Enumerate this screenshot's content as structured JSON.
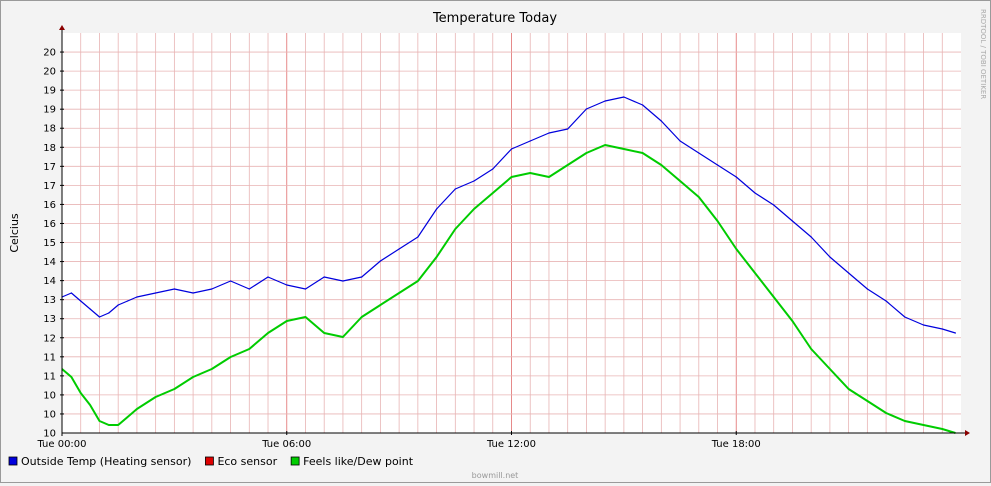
{
  "chart_data": {
    "type": "line",
    "title": "Temperature Today",
    "ylabel": "Celcius",
    "xlabel": "",
    "xlim": [
      0,
      24
    ],
    "ylim": [
      10,
      20
    ],
    "x_ticks": [
      {
        "value": 0,
        "label": "Tue 00:00"
      },
      {
        "value": 6,
        "label": "Tue 06:00"
      },
      {
        "value": 12,
        "label": "Tue 12:00"
      },
      {
        "value": 18,
        "label": "Tue 18:00"
      }
    ],
    "y_ticks": [
      "10",
      "10",
      "11",
      "11",
      "12",
      "13",
      "13",
      "14",
      "14",
      "15",
      "16",
      "16",
      "17",
      "17",
      "18",
      "18",
      "19",
      "19",
      "20",
      "20"
    ],
    "grid": true,
    "legend_position": "bottom-left",
    "watermark": "RRDTOOL / TOBI OETIKER",
    "footer": "bowmill.net",
    "series": [
      {
        "name": "Outside Temp (Heating sensor)",
        "color": "#0000dd",
        "x": [
          0.0,
          0.25,
          0.5,
          0.75,
          1.0,
          1.25,
          1.5,
          1.75,
          2.0,
          2.5,
          3.0,
          3.5,
          4.0,
          4.5,
          5.0,
          5.5,
          6.0,
          6.5,
          7.0,
          7.5,
          8.0,
          8.5,
          9.0,
          9.5,
          10.0,
          10.5,
          11.0,
          11.5,
          12.0,
          12.5,
          13.0,
          13.5,
          14.0,
          14.5,
          15.0,
          15.5,
          16.0,
          16.5,
          17.0,
          17.5,
          18.0,
          18.5,
          19.0,
          19.5,
          20.0,
          20.5,
          21.0,
          21.5,
          22.0,
          22.5,
          23.0,
          23.5,
          23.85
        ],
        "y": [
          13.4,
          13.5,
          13.3,
          13.1,
          12.9,
          13.0,
          13.2,
          13.3,
          13.4,
          13.5,
          13.6,
          13.5,
          13.6,
          13.8,
          13.6,
          13.9,
          13.7,
          13.6,
          13.9,
          13.8,
          13.9,
          14.3,
          14.6,
          14.9,
          15.6,
          16.1,
          16.3,
          16.6,
          17.1,
          17.3,
          17.5,
          17.6,
          18.1,
          18.3,
          18.4,
          18.2,
          17.8,
          17.3,
          17.0,
          16.7,
          16.4,
          16.0,
          15.7,
          15.3,
          14.9,
          14.4,
          14.0,
          13.6,
          13.3,
          12.9,
          12.7,
          12.6,
          12.5
        ]
      },
      {
        "name": "Eco sensor",
        "color": "#dd0000",
        "x": [],
        "y": []
      },
      {
        "name": "Feels like/Dew point",
        "color": "#00cc00",
        "x": [
          0.0,
          0.25,
          0.5,
          0.75,
          1.0,
          1.25,
          1.5,
          1.75,
          2.0,
          2.5,
          3.0,
          3.5,
          4.0,
          4.5,
          5.0,
          5.5,
          6.0,
          6.5,
          7.0,
          7.5,
          8.0,
          8.5,
          9.0,
          9.5,
          10.0,
          10.5,
          11.0,
          11.5,
          12.0,
          12.5,
          13.0,
          13.5,
          14.0,
          14.5,
          15.0,
          15.5,
          16.0,
          16.5,
          17.0,
          17.5,
          18.0,
          18.5,
          19.0,
          19.5,
          20.0,
          20.5,
          21.0,
          21.5,
          22.0,
          22.5,
          23.0,
          23.5,
          23.85
        ],
        "y": [
          11.6,
          11.4,
          11.0,
          10.7,
          10.3,
          10.2,
          10.2,
          10.4,
          10.6,
          10.9,
          11.1,
          11.4,
          11.6,
          11.9,
          12.1,
          12.5,
          12.8,
          12.9,
          12.5,
          12.4,
          12.9,
          13.2,
          13.5,
          13.8,
          14.4,
          15.1,
          15.6,
          16.0,
          16.4,
          16.5,
          16.4,
          16.7,
          17.0,
          17.2,
          17.1,
          17.0,
          16.7,
          16.3,
          15.9,
          15.3,
          14.6,
          14.0,
          13.4,
          12.8,
          12.1,
          11.6,
          11.1,
          10.8,
          10.5,
          10.3,
          10.2,
          10.1,
          10.0
        ]
      }
    ]
  }
}
